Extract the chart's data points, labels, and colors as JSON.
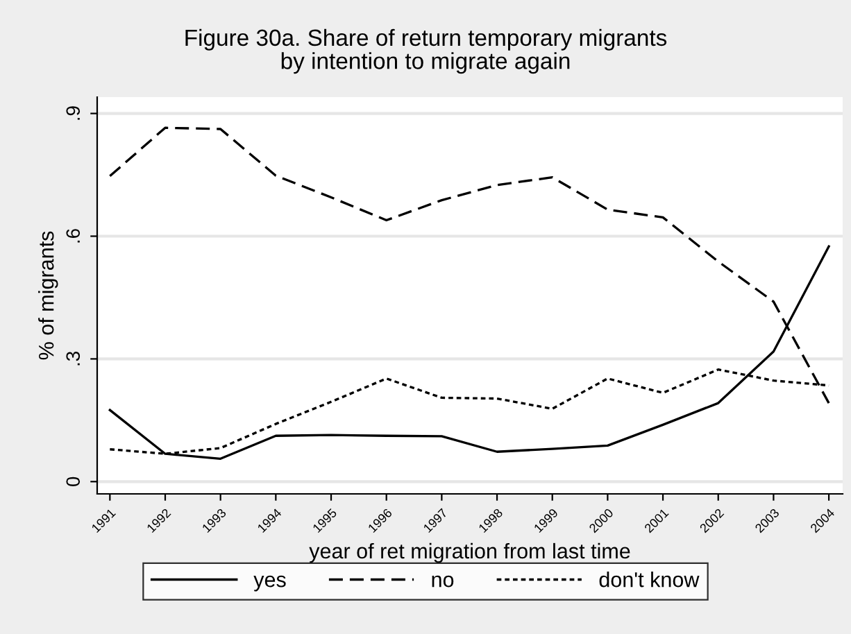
{
  "chart_data": {
    "type": "line",
    "title": "Figure 30a. Share of return temporary migrants\nby intention to migrate again",
    "xlabel": "year of ret migration from last time",
    "ylabel": "% of migrants",
    "categories": [
      "1991",
      "1992",
      "1993",
      "1994",
      "1995",
      "1996",
      "1997",
      "1998",
      "1999",
      "2000",
      "2001",
      "2002",
      "2003",
      "2004"
    ],
    "series": [
      {
        "name": "yes",
        "color": "#000000",
        "line_style": "solid",
        "values": [
          0.175,
          0.068,
          0.056,
          0.112,
          0.114,
          0.112,
          0.111,
          0.073,
          0.08,
          0.088,
          0.139,
          0.192,
          0.318,
          0.575
        ]
      },
      {
        "name": "no",
        "color": "#000000",
        "line_style": "dashed",
        "values": [
          0.747,
          0.865,
          0.862,
          0.748,
          0.695,
          0.639,
          0.688,
          0.725,
          0.744,
          0.665,
          0.646,
          0.538,
          0.44,
          0.192
        ]
      },
      {
        "name": "don't know",
        "color": "#000000",
        "line_style": "dotted",
        "values": [
          0.079,
          0.068,
          0.082,
          0.141,
          0.195,
          0.252,
          0.205,
          0.203,
          0.178,
          0.252,
          0.217,
          0.274,
          0.247,
          0.235
        ]
      }
    ],
    "ylim": [
      -0.03,
      0.94
    ],
    "yticks": [
      {
        "value": 0,
        "label": "0"
      },
      {
        "value": 0.3,
        "label": ".3"
      },
      {
        "value": 0.6,
        "label": ".6"
      },
      {
        "value": 0.9,
        "label": ".9"
      }
    ],
    "grid": "y",
    "legend": "bottom",
    "marker": "none"
  }
}
